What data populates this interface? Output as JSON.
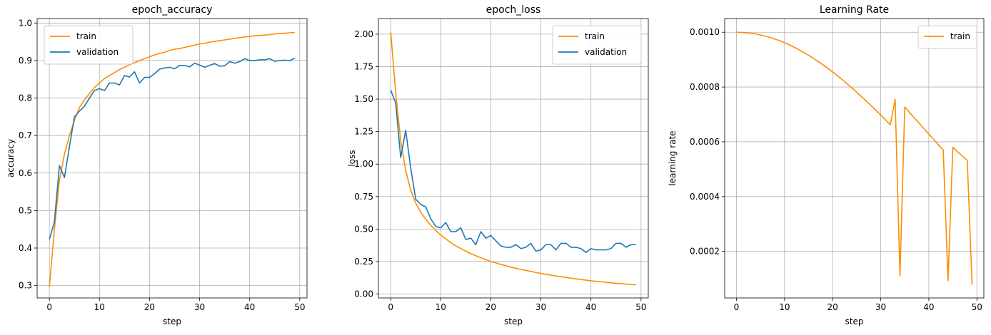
{
  "colors": {
    "train": "#ff8c00",
    "validation": "#1f77b4",
    "grid": "#b0b0b0",
    "axes": "#000000"
  },
  "chart_data": [
    {
      "type": "line",
      "title": "epoch_accuracy",
      "xlabel": "step",
      "ylabel": "accuracy",
      "xlim": [
        -2.45,
        51.45
      ],
      "ylim": [
        0.267,
        1.012
      ],
      "xticks": [
        0,
        10,
        20,
        30,
        40,
        50
      ],
      "xtick_labels": [
        "0",
        "10",
        "20",
        "30",
        "40",
        "50"
      ],
      "yticks": [
        0.3,
        0.4,
        0.5,
        0.6,
        0.7,
        0.8,
        0.9,
        1.0
      ],
      "ytick_labels": [
        "0.3",
        "0.4",
        "0.5",
        "0.6",
        "0.7",
        "0.8",
        "0.9",
        "1.0"
      ],
      "grid": true,
      "legend_position": "upper-left",
      "series": [
        {
          "name": "train",
          "color": "#ff8c00",
          "x": [
            0,
            1,
            2,
            3,
            4,
            5,
            6,
            7,
            8,
            9,
            10,
            11,
            12,
            13,
            14,
            15,
            16,
            17,
            18,
            19,
            20,
            21,
            22,
            23,
            24,
            25,
            26,
            27,
            28,
            29,
            30,
            31,
            32,
            33,
            34,
            35,
            36,
            37,
            38,
            39,
            40,
            41,
            42,
            43,
            44,
            45,
            46,
            47,
            48,
            49
          ],
          "y": [
            0.297,
            0.45,
            0.58,
            0.65,
            0.7,
            0.74,
            0.775,
            0.795,
            0.812,
            0.828,
            0.84,
            0.852,
            0.86,
            0.868,
            0.876,
            0.882,
            0.889,
            0.894,
            0.9,
            0.905,
            0.91,
            0.915,
            0.919,
            0.922,
            0.927,
            0.93,
            0.932,
            0.935,
            0.938,
            0.941,
            0.944,
            0.946,
            0.949,
            0.951,
            0.953,
            0.955,
            0.957,
            0.959,
            0.961,
            0.963,
            0.964,
            0.966,
            0.967,
            0.968,
            0.969,
            0.971,
            0.972,
            0.973,
            0.974,
            0.975
          ]
        },
        {
          "name": "validation",
          "color": "#1f77b4",
          "x": [
            0,
            1,
            2,
            3,
            4,
            5,
            6,
            7,
            8,
            9,
            10,
            11,
            12,
            13,
            14,
            15,
            16,
            17,
            18,
            19,
            20,
            21,
            22,
            23,
            24,
            25,
            26,
            27,
            28,
            29,
            30,
            31,
            32,
            33,
            34,
            35,
            36,
            37,
            38,
            39,
            40,
            41,
            42,
            43,
            44,
            45,
            46,
            47,
            48,
            49
          ],
          "y": [
            0.423,
            0.47,
            0.62,
            0.588,
            0.67,
            0.75,
            0.765,
            0.778,
            0.8,
            0.82,
            0.825,
            0.82,
            0.84,
            0.84,
            0.835,
            0.86,
            0.856,
            0.87,
            0.84,
            0.855,
            0.855,
            0.865,
            0.877,
            0.88,
            0.882,
            0.878,
            0.887,
            0.887,
            0.883,
            0.893,
            0.888,
            0.882,
            0.887,
            0.892,
            0.885,
            0.886,
            0.897,
            0.893,
            0.897,
            0.905,
            0.9,
            0.9,
            0.902,
            0.902,
            0.905,
            0.898,
            0.9,
            0.901,
            0.9,
            0.906
          ]
        }
      ]
    },
    {
      "type": "line",
      "title": "epoch_loss",
      "xlabel": "step",
      "ylabel": "loss",
      "xlim": [
        -2.45,
        51.45
      ],
      "ylim": [
        -0.03,
        2.12
      ],
      "xticks": [
        0,
        10,
        20,
        30,
        40,
        50
      ],
      "xtick_labels": [
        "0",
        "10",
        "20",
        "30",
        "40",
        "50"
      ],
      "yticks": [
        0.0,
        0.25,
        0.5,
        0.75,
        1.0,
        1.25,
        1.5,
        1.75,
        2.0
      ],
      "ytick_labels": [
        "0.00",
        "0.25",
        "0.50",
        "0.75",
        "1.00",
        "1.25",
        "1.50",
        "1.75",
        "2.00"
      ],
      "grid": true,
      "legend_position": "upper-right",
      "series": [
        {
          "name": "train",
          "color": "#ff8c00",
          "x": [
            0,
            1,
            2,
            3,
            4,
            5,
            6,
            7,
            8,
            9,
            10,
            11,
            12,
            13,
            14,
            15,
            16,
            17,
            18,
            19,
            20,
            21,
            22,
            23,
            24,
            25,
            26,
            27,
            28,
            29,
            30,
            31,
            32,
            33,
            34,
            35,
            36,
            37,
            38,
            39,
            40,
            41,
            42,
            43,
            44,
            45,
            46,
            47,
            48,
            49
          ],
          "y": [
            2.02,
            1.55,
            1.18,
            0.95,
            0.8,
            0.7,
            0.63,
            0.575,
            0.53,
            0.49,
            0.455,
            0.425,
            0.395,
            0.37,
            0.35,
            0.33,
            0.31,
            0.295,
            0.28,
            0.265,
            0.25,
            0.24,
            0.228,
            0.218,
            0.207,
            0.198,
            0.19,
            0.182,
            0.174,
            0.166,
            0.158,
            0.152,
            0.145,
            0.139,
            0.133,
            0.128,
            0.122,
            0.117,
            0.112,
            0.107,
            0.102,
            0.098,
            0.094,
            0.09,
            0.086,
            0.083,
            0.08,
            0.077,
            0.074,
            0.071
          ]
        },
        {
          "name": "validation",
          "color": "#1f77b4",
          "x": [
            0,
            1,
            2,
            3,
            4,
            5,
            6,
            7,
            8,
            9,
            10,
            11,
            12,
            13,
            14,
            15,
            16,
            17,
            18,
            19,
            20,
            21,
            22,
            23,
            24,
            25,
            26,
            27,
            28,
            29,
            30,
            31,
            32,
            33,
            34,
            35,
            36,
            37,
            38,
            39,
            40,
            41,
            42,
            43,
            44,
            45,
            46,
            47,
            48,
            49
          ],
          "y": [
            1.57,
            1.47,
            1.05,
            1.26,
            0.97,
            0.73,
            0.69,
            0.67,
            0.58,
            0.52,
            0.51,
            0.55,
            0.48,
            0.48,
            0.51,
            0.42,
            0.43,
            0.38,
            0.48,
            0.43,
            0.45,
            0.41,
            0.37,
            0.36,
            0.36,
            0.38,
            0.35,
            0.36,
            0.39,
            0.33,
            0.34,
            0.38,
            0.38,
            0.34,
            0.39,
            0.39,
            0.36,
            0.36,
            0.35,
            0.32,
            0.35,
            0.34,
            0.34,
            0.34,
            0.35,
            0.39,
            0.39,
            0.36,
            0.38,
            0.38
          ]
        }
      ]
    },
    {
      "type": "line",
      "title": "Learning Rate",
      "xlabel": "step",
      "ylabel": "learning rate",
      "xlim": [
        -2.45,
        51.45
      ],
      "ylim": [
        3e-05,
        0.00105
      ],
      "xticks": [
        0,
        10,
        20,
        30,
        40,
        50
      ],
      "xtick_labels": [
        "0",
        "10",
        "20",
        "30",
        "40",
        "50"
      ],
      "yticks": [
        0.0002,
        0.0004,
        0.0006,
        0.0008,
        0.001
      ],
      "ytick_labels": [
        "0.0002",
        "0.0004",
        "0.0006",
        "0.0008",
        "0.0010"
      ],
      "grid": true,
      "legend_position": "upper-right",
      "series": [
        {
          "name": "train",
          "color": "#ff8c00",
          "x": [
            0,
            1,
            2,
            3,
            4,
            5,
            6,
            7,
            8,
            9,
            10,
            11,
            12,
            13,
            14,
            15,
            16,
            17,
            18,
            19,
            20,
            21,
            22,
            23,
            24,
            25,
            26,
            27,
            28,
            29,
            30,
            31,
            32,
            33,
            34,
            35,
            36,
            37,
            38,
            39,
            40,
            41,
            42,
            43,
            44,
            45,
            46,
            47,
            48,
            49
          ],
          "y": [
            0.001,
            0.000999,
            0.000998,
            0.000996,
            0.000994,
            0.00099,
            0.000986,
            0.000981,
            0.000975,
            0.000969,
            0.000962,
            0.000954,
            0.000945,
            0.000936,
            0.000926,
            0.000916,
            0.000905,
            0.000893,
            0.000881,
            0.000868,
            0.000855,
            0.000841,
            0.000827,
            0.000812,
            0.000797,
            0.000781,
            0.000765,
            0.000749,
            0.000732,
            0.000715,
            0.000698,
            0.00068,
            0.000662,
            0.000755,
            0.000112,
            0.000727,
            0.000707,
            0.000687,
            0.000668,
            0.000648,
            0.000628,
            0.000609,
            0.000589,
            0.00057,
            9.3e-05,
            0.00058,
            0.000563,
            0.000548,
            0.000532,
            7.8e-05
          ]
        }
      ]
    }
  ]
}
